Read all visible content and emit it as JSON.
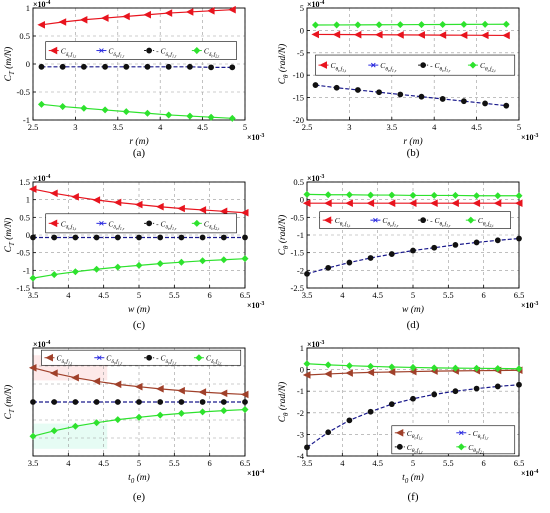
{
  "chart_data": [
    {
      "panel": "(a)",
      "type": "line",
      "title": "",
      "xlabel": "r (m)",
      "ylabel": "C_T (m/N)",
      "x_multiplier": "×10^{-3}",
      "y_multiplier": "×10^{-4}",
      "xlim": [
        2.5,
        5
      ],
      "ylim": [
        -1,
        1
      ],
      "xticks": [
        "2.5",
        "3",
        "3.5",
        "4",
        "4.5",
        "5"
      ],
      "yticks": [
        "-1",
        "-0.5",
        "0",
        "0.5",
        "1"
      ],
      "grid": true,
      "legend": "inside-top",
      "legend_entries": [
        "C_{δ_t,f_{1,t}}",
        "C_{δ_t,f_{1,r}}",
        "- C_{δ_t,f_{1,r}}",
        "C_{δ_t,f_{2,t}}"
      ],
      "x": [
        2.6,
        2.85,
        3.1,
        3.35,
        3.6,
        3.85,
        4.1,
        4.35,
        4.6,
        4.85
      ],
      "series": [
        {
          "name": "C_{δ_t,f_{1,t}}",
          "color": "#e8141e",
          "marker": "triangle-left",
          "values": [
            0.7,
            0.75,
            0.79,
            0.82,
            0.85,
            0.88,
            0.91,
            0.93,
            0.95,
            0.97
          ]
        },
        {
          "name": "C_{δ_t,f_{1,r}}",
          "color": "#1a1a8c",
          "marker": "dot",
          "values": [
            -0.05,
            -0.05,
            -0.05,
            -0.05,
            -0.05,
            -0.05,
            -0.05,
            -0.05,
            -0.06,
            -0.06
          ]
        },
        {
          "name": "C_{δ_t,f_{2,t}}",
          "color": "#2ee22e",
          "marker": "diamond",
          "values": [
            -0.72,
            -0.76,
            -0.79,
            -0.82,
            -0.85,
            -0.88,
            -0.91,
            -0.93,
            -0.95,
            -0.97
          ]
        }
      ]
    },
    {
      "panel": "(b)",
      "type": "line",
      "title": "",
      "xlabel": "r (m)",
      "ylabel": "C_θ (rad/N)",
      "x_multiplier": "×10^{-3}",
      "y_multiplier": "×10^{-4}",
      "xlim": [
        2.5,
        5
      ],
      "ylim": [
        -20,
        5
      ],
      "xticks": [
        "2.5",
        "3",
        "3.5",
        "4",
        "4.5",
        "5"
      ],
      "yticks": [
        "-20",
        "-15",
        "-10",
        "-5",
        "0",
        "5"
      ],
      "grid": true,
      "legend": "inside-middle",
      "legend_entries": [
        "C_{θ_t,f_{1,t}}",
        "C_{θ_t,f_{1,r}}",
        "- C_{θ_t,f_{1,r}}",
        "C_{θ_t,f_{2,t}}"
      ],
      "x": [
        2.6,
        2.85,
        3.1,
        3.35,
        3.6,
        3.85,
        4.1,
        4.35,
        4.6,
        4.85
      ],
      "series": [
        {
          "name": "C_{θ_t,f_{1,t}}",
          "color": "#e8141e",
          "marker": "triangle-left",
          "values": [
            -0.9,
            -0.92,
            -0.95,
            -0.97,
            -1.0,
            -1.02,
            -1.05,
            -1.07,
            -1.1,
            -1.12
          ]
        },
        {
          "name": "C_{θ_t,f_{1,r}}",
          "color": "#1a1a8c",
          "marker": "dot",
          "values": [
            -12.2,
            -12.8,
            -13.3,
            -13.8,
            -14.3,
            -14.8,
            -15.3,
            -15.8,
            -16.3,
            -16.8
          ]
        },
        {
          "name": "C_{θ_t,f_{2,t}}",
          "color": "#2ee22e",
          "marker": "diamond",
          "values": [
            1.2,
            1.22,
            1.24,
            1.26,
            1.28,
            1.3,
            1.32,
            1.34,
            1.36,
            1.38
          ]
        }
      ]
    },
    {
      "panel": "(c)",
      "type": "line",
      "title": "",
      "xlabel": "w (m)",
      "ylabel": "C_T (m/N)",
      "x_multiplier": "×10^{-3}",
      "y_multiplier": "×10^{-4}",
      "xlim": [
        3.5,
        6.5
      ],
      "ylim": [
        -1.5,
        1.5
      ],
      "xticks": [
        "3.5",
        "4",
        "4.5",
        "5",
        "5.5",
        "6",
        "6.5"
      ],
      "yticks": [
        "-1.5",
        "-1",
        "-0.5",
        "0",
        "0.5",
        "1",
        "1.5"
      ],
      "grid": true,
      "legend": "inside-middle",
      "legend_entries": [
        "C_{δ_t,f_{1,t}}",
        "C_{δ_t,f_{1,r}}",
        "- C_{δ_t,f_{1,r}}",
        "C_{δ_t,f_{2,t}}"
      ],
      "x": [
        3.5,
        3.8,
        4.1,
        4.4,
        4.7,
        5.0,
        5.3,
        5.6,
        5.9,
        6.2,
        6.5
      ],
      "series": [
        {
          "name": "C_{δ_t,f_{1,t}}",
          "color": "#e8141e",
          "marker": "triangle-left",
          "values": [
            1.3,
            1.18,
            1.08,
            0.99,
            0.92,
            0.86,
            0.8,
            0.75,
            0.71,
            0.67,
            0.63
          ]
        },
        {
          "name": "C_{δ_t,f_{1,r}}",
          "color": "#1a1a8c",
          "marker": "dot",
          "values": [
            -0.07,
            -0.07,
            -0.07,
            -0.07,
            -0.07,
            -0.07,
            -0.07,
            -0.07,
            -0.07,
            -0.07,
            -0.07
          ]
        },
        {
          "name": "C_{δ_t,f_{2,t}}",
          "color": "#2ee22e",
          "marker": "diamond",
          "values": [
            -1.22,
            -1.12,
            -1.04,
            -0.97,
            -0.91,
            -0.86,
            -0.81,
            -0.77,
            -0.73,
            -0.7,
            -0.67
          ]
        }
      ]
    },
    {
      "panel": "(d)",
      "type": "line",
      "title": "",
      "xlabel": "w (m)",
      "ylabel": "C_θ (rad/N)",
      "x_multiplier": "×10^{-3}",
      "y_multiplier": "×10^{-3}",
      "xlim": [
        3.5,
        6.5
      ],
      "ylim": [
        -2.5,
        0.5
      ],
      "xticks": [
        "3.5",
        "4",
        "4.5",
        "5",
        "5.5",
        "6",
        "6.5"
      ],
      "yticks": [
        "-2.5",
        "-2",
        "-1.5",
        "-1",
        "-0.5",
        "0",
        "0.5"
      ],
      "grid": true,
      "legend": "inside-top",
      "legend_entries": [
        "C_{θ_t,f_{1,t}}",
        "C_{θ_t,f_{1,r}}",
        "- C_{θ_t,f_{1,r}}",
        "C_{θ_t,f_{2,t}}"
      ],
      "x": [
        3.5,
        3.8,
        4.1,
        4.4,
        4.7,
        5.0,
        5.3,
        5.6,
        5.9,
        6.2,
        6.5
      ],
      "series": [
        {
          "name": "C_{θ_t,f_{1,t}}",
          "color": "#e8141e",
          "marker": "triangle-left",
          "values": [
            -0.1,
            -0.1,
            -0.1,
            -0.1,
            -0.1,
            -0.1,
            -0.1,
            -0.1,
            -0.1,
            -0.1,
            -0.1
          ]
        },
        {
          "name": "C_{θ_t,f_{1,r}}",
          "color": "#1a1a8c",
          "marker": "dot",
          "values": [
            -2.1,
            -1.93,
            -1.78,
            -1.65,
            -1.54,
            -1.44,
            -1.36,
            -1.28,
            -1.21,
            -1.15,
            -1.1
          ]
        },
        {
          "name": "C_{θ_t,f_{2,t}}",
          "color": "#2ee22e",
          "marker": "diamond",
          "values": [
            0.15,
            0.14,
            0.14,
            0.13,
            0.13,
            0.12,
            0.12,
            0.12,
            0.11,
            0.11,
            0.11
          ]
        }
      ]
    },
    {
      "panel": "(e)",
      "type": "line",
      "title": "",
      "xlabel": "t_0 (m)",
      "ylabel": "C_T (m/N)",
      "x_multiplier": "×10^{-4}",
      "y_multiplier": "×10^{-4}",
      "xlim": [
        3.5,
        6.5
      ],
      "ylim": [
        -3,
        3
      ],
      "xticks": [
        "3.5",
        "4",
        "4.5",
        "5",
        "5.5",
        "6",
        "6.5"
      ],
      "yticks": [],
      "grid": true,
      "legend": "inside-top",
      "legend_entries": [
        "C_{δ_t,f_{1,t}}",
        "C_{δ_t,f_{1,r}}",
        "- C_{δ_t,f_{1,r}}",
        "C_{δ_t,f_{2,t}}"
      ],
      "x": [
        3.5,
        3.8,
        4.1,
        4.4,
        4.7,
        5.0,
        5.3,
        5.6,
        5.9,
        6.2,
        6.5
      ],
      "series": [
        {
          "name": "C_{δ_t,f_{1,t}}",
          "color": "#a0402a",
          "marker": "triangle-left",
          "values": [
            1.9,
            1.6,
            1.35,
            1.15,
            0.98,
            0.85,
            0.73,
            0.63,
            0.55,
            0.48,
            0.42
          ]
        },
        {
          "name": "C_{δ_t,f_{1,r}}",
          "color": "#1a1a8c",
          "marker": "dot",
          "values": [
            0.0,
            0.0,
            0.0,
            0.0,
            0.0,
            0.0,
            0.0,
            0.0,
            0.0,
            0.0,
            0.0
          ]
        },
        {
          "name": "C_{δ_t,f_{2,t}}",
          "color": "#2ee22e",
          "marker": "diamond",
          "values": [
            -1.9,
            -1.6,
            -1.35,
            -1.15,
            -0.98,
            -0.85,
            -0.73,
            -0.63,
            -0.55,
            -0.48,
            -0.42
          ]
        }
      ]
    },
    {
      "panel": "(f)",
      "type": "line",
      "title": "",
      "xlabel": "t_0 (m)",
      "ylabel": "C_θ (rad/N)",
      "x_multiplier": "×10^{-4}",
      "y_multiplier": "×10^{-3}",
      "xlim": [
        3.5,
        6.5
      ],
      "ylim": [
        -4,
        1
      ],
      "xticks": [
        "3.5",
        "4",
        "4.5",
        "5",
        "5.5",
        "6",
        "6.5"
      ],
      "yticks": [
        "-4",
        "-3",
        "-2",
        "-1",
        "0",
        "1"
      ],
      "grid": true,
      "legend": "inside-bottom",
      "legend_entries": [
        "C_{θ_t,f_{1,t}}",
        "- C_{θ_t,f_{1,r}}",
        "C_{θ_t,f_{1,r}}",
        "C_{θ_t,f_{2,t}}"
      ],
      "x": [
        3.5,
        3.8,
        4.1,
        4.4,
        4.7,
        5.0,
        5.3,
        5.6,
        5.9,
        6.2,
        6.5
      ],
      "series": [
        {
          "name": "C_{θ_t,f_{1,t}}",
          "color": "#a0402a",
          "marker": "triangle-left",
          "values": [
            -0.25,
            -0.2,
            -0.16,
            -0.13,
            -0.11,
            -0.09,
            -0.07,
            -0.06,
            -0.05,
            -0.04,
            -0.03
          ]
        },
        {
          "name": "C_{θ_t,f_{1,r}}",
          "color": "#1a1a8c",
          "marker": "dot",
          "values": [
            -3.6,
            -2.9,
            -2.35,
            -1.95,
            -1.6,
            -1.35,
            -1.15,
            -1.0,
            -0.88,
            -0.78,
            -0.7
          ]
        },
        {
          "name": "C_{θ_t,f_{2,t}}",
          "color": "#2ee22e",
          "marker": "diamond",
          "values": [
            0.27,
            0.22,
            0.18,
            0.15,
            0.12,
            0.1,
            0.08,
            0.07,
            0.06,
            0.05,
            0.04
          ]
        }
      ]
    }
  ]
}
